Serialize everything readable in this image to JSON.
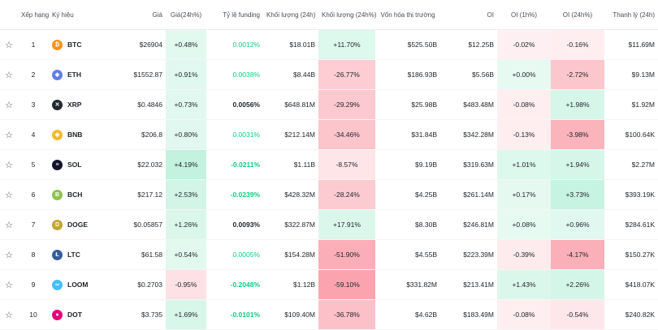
{
  "headers": {
    "rank": "Xếp hạng",
    "symbol": "Ký hiệu",
    "price": "Giá",
    "price_change": "Giá(24h%)",
    "funding": "Tỷ lệ funding",
    "volume": "Khối lượng (24h)",
    "volume_change": "Khối lượng (24h%)",
    "market_cap": "Vốn hóa thị trường",
    "oi": "OI",
    "oi_1h": "OI (1h%)",
    "oi_24h": "OI (24h%)",
    "liquidation": "Thanh lý (24h)"
  },
  "rows": [
    {
      "rank": "1",
      "symbol": "BTC",
      "price": "$26904",
      "price_change": "+0.48%",
      "funding": "0.0012%",
      "volume": "$18.01B",
      "volume_change": "+11.70%",
      "market_cap": "$525.50B",
      "oi": "$12.25B",
      "oi_1h": "-0.02%",
      "oi_24h": "-0.16%",
      "liquidation": "$11.69M"
    },
    {
      "rank": "2",
      "symbol": "ETH",
      "price": "$1552.87",
      "price_change": "+0.91%",
      "funding": "0.0038%",
      "volume": "$8.44B",
      "volume_change": "-26.77%",
      "market_cap": "$186.93B",
      "oi": "$5.56B",
      "oi_1h": "+0.00%",
      "oi_24h": "-2.72%",
      "liquidation": "$9.13M"
    },
    {
      "rank": "3",
      "symbol": "XRP",
      "price": "$0.4846",
      "price_change": "+0.73%",
      "funding": "0.0056%",
      "volume": "$648.81M",
      "volume_change": "-29.29%",
      "market_cap": "$25.98B",
      "oi": "$483.48M",
      "oi_1h": "-0.08%",
      "oi_24h": "+1.98%",
      "liquidation": "$1.92M"
    },
    {
      "rank": "4",
      "symbol": "BNB",
      "price": "$206.8",
      "price_change": "+0.80%",
      "funding": "0.0031%",
      "volume": "$212.14M",
      "volume_change": "-34.46%",
      "market_cap": "$31.84B",
      "oi": "$342.28M",
      "oi_1h": "-0.13%",
      "oi_24h": "-3.98%",
      "liquidation": "$100.64K"
    },
    {
      "rank": "5",
      "symbol": "SOL",
      "price": "$22.032",
      "price_change": "+4.19%",
      "funding": "-0.0211%",
      "volume": "$1.11B",
      "volume_change": "-8.57%",
      "market_cap": "$9.19B",
      "oi": "$319.63M",
      "oi_1h": "+1.01%",
      "oi_24h": "+1.94%",
      "liquidation": "$2.27M"
    },
    {
      "rank": "6",
      "symbol": "BCH",
      "price": "$217.12",
      "price_change": "+2.53%",
      "funding": "-0.0239%",
      "volume": "$428.32M",
      "volume_change": "-28.24%",
      "market_cap": "$4.25B",
      "oi": "$261.14M",
      "oi_1h": "+0.17%",
      "oi_24h": "+3.73%",
      "liquidation": "$393.19K"
    },
    {
      "rank": "7",
      "symbol": "DOGE",
      "price": "$0.05857",
      "price_change": "+1.26%",
      "funding": "0.0093%",
      "volume": "$322.87M",
      "volume_change": "+17.91%",
      "market_cap": "$8.30B",
      "oi": "$246.81M",
      "oi_1h": "+0.08%",
      "oi_24h": "+0.96%",
      "liquidation": "$284.61K"
    },
    {
      "rank": "8",
      "symbol": "LTC",
      "price": "$61.58",
      "price_change": "+0.54%",
      "funding": "0.0005%",
      "volume": "$154.28M",
      "volume_change": "-51.90%",
      "market_cap": "$4.55B",
      "oi": "$223.39M",
      "oi_1h": "-0.39%",
      "oi_24h": "-4.17%",
      "liquidation": "$150.27K"
    },
    {
      "rank": "9",
      "symbol": "LOOM",
      "price": "$0.2703",
      "price_change": "-0.95%",
      "funding": "-0.2048%",
      "volume": "$1.12B",
      "volume_change": "-59.10%",
      "market_cap": "$331.82M",
      "oi": "$213.41M",
      "oi_1h": "+1.43%",
      "oi_24h": "+2.26%",
      "liquidation": "$418.07K"
    },
    {
      "rank": "10",
      "symbol": "DOT",
      "price": "$3.735",
      "price_change": "+1.69%",
      "funding": "-0.0101%",
      "volume": "$109.40M",
      "volume_change": "-36.78%",
      "market_cap": "$4.62B",
      "oi": "$183.49M",
      "oi_1h": "-0.08%",
      "oi_24h": "-0.54%",
      "liquidation": "$240.82K"
    }
  ],
  "coin_icons": [
    {
      "name": "bitcoin-icon",
      "color": "#f7931a",
      "glyph": "₿"
    },
    {
      "name": "ethereum-icon",
      "color": "#627eea",
      "glyph": "◆"
    },
    {
      "name": "xrp-icon",
      "color": "#23292f",
      "glyph": "✕"
    },
    {
      "name": "bnb-icon",
      "color": "#f3ba2f",
      "glyph": "◆"
    },
    {
      "name": "solana-icon",
      "color": "#14142b",
      "glyph": "≡"
    },
    {
      "name": "bitcoin-cash-icon",
      "color": "#8dc351",
      "glyph": "B"
    },
    {
      "name": "dogecoin-icon",
      "color": "#c2a633",
      "glyph": "D"
    },
    {
      "name": "litecoin-icon",
      "color": "#345d9d",
      "glyph": "Ł"
    },
    {
      "name": "loom-icon",
      "color": "#48beff",
      "glyph": "∞"
    },
    {
      "name": "polkadot-icon",
      "color": "#e6007a",
      "glyph": "●"
    }
  ]
}
